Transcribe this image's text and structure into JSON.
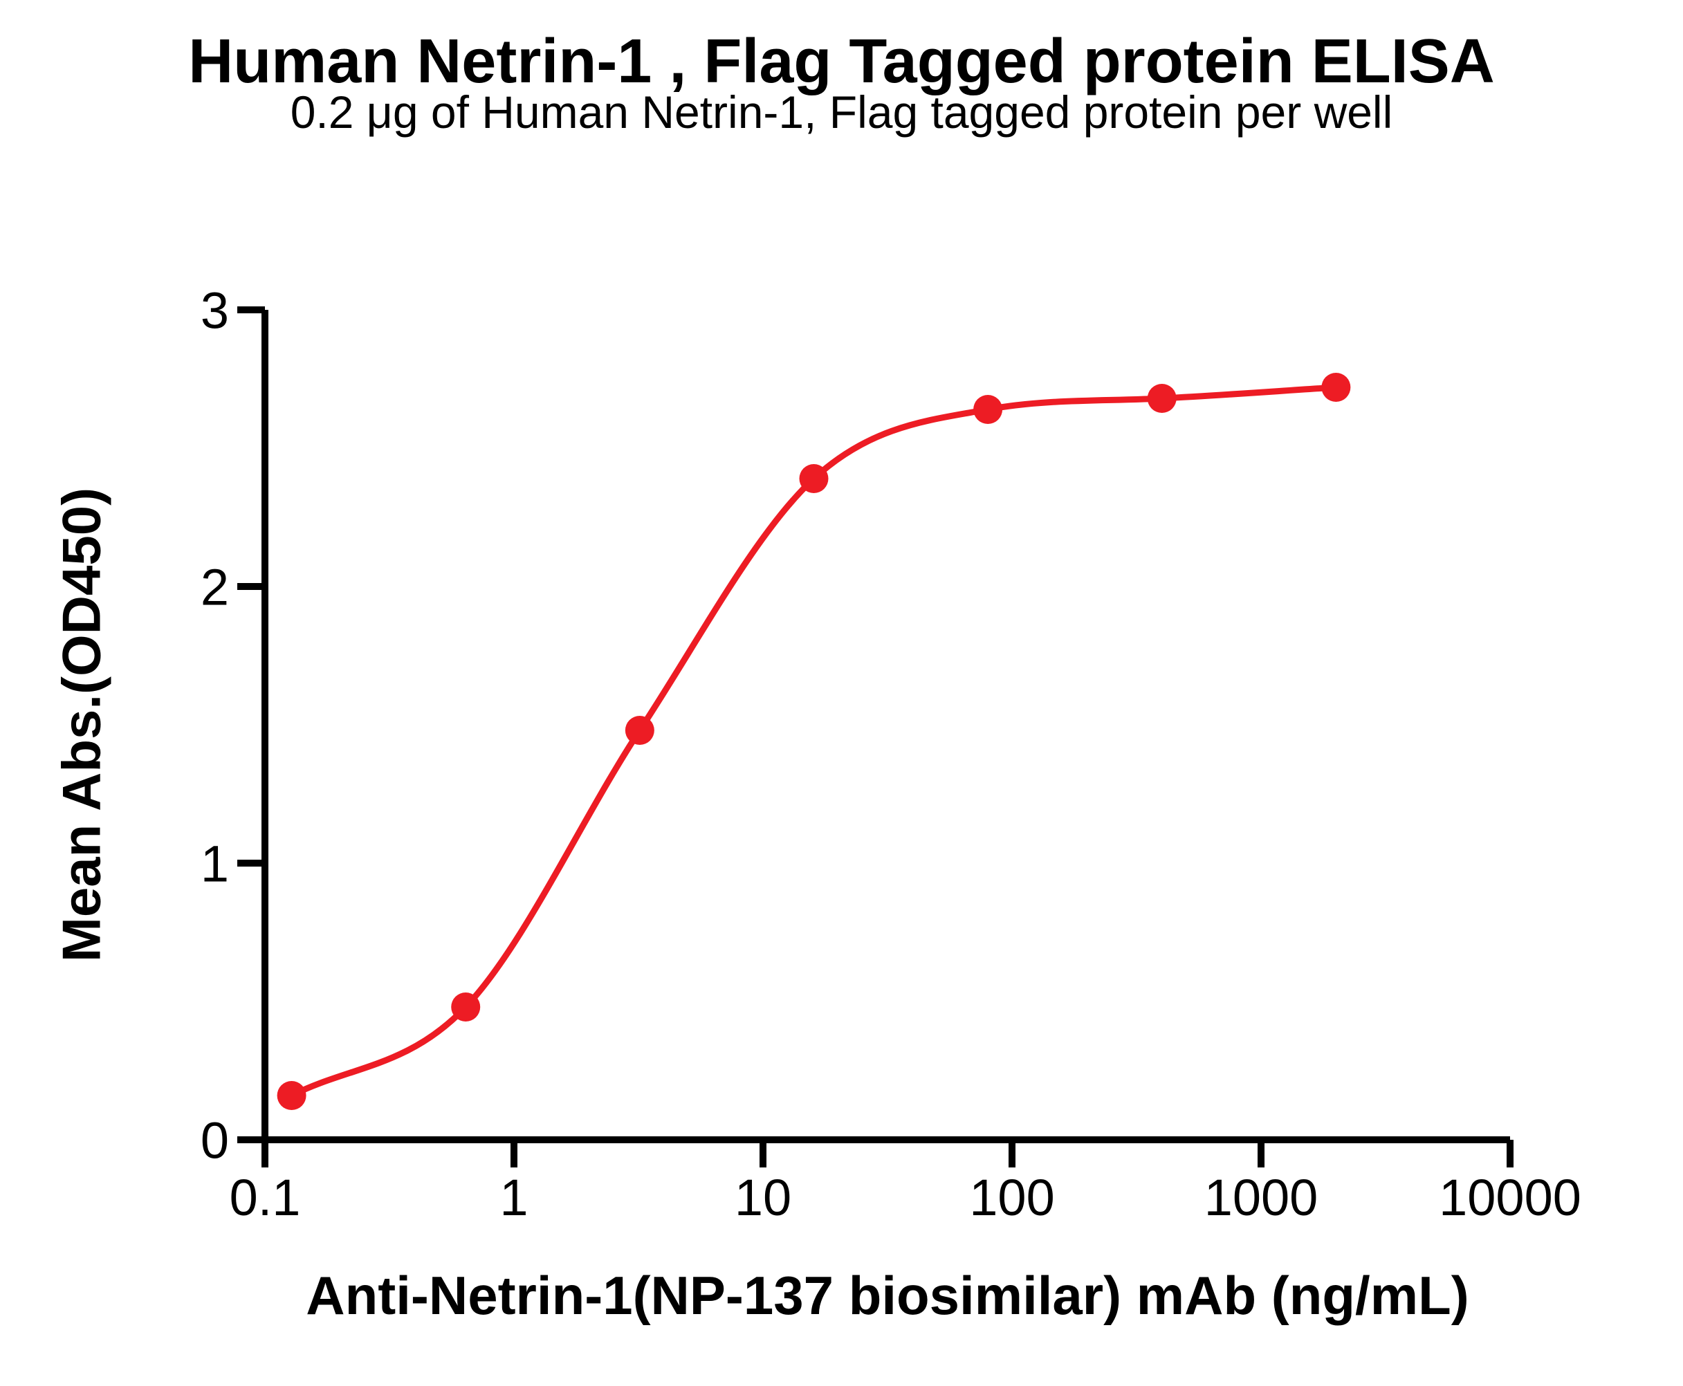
{
  "chart_data": {
    "type": "line",
    "title": "Human Netrin-1 , Flag Tagged protein ELISA",
    "subtitle": "0.2 μg of Human Netrin-1, Flag tagged protein per well",
    "xlabel": "Anti-Netrin-1(NP-137 biosimilar) mAb (ng/mL)",
    "ylabel": "Mean Abs.(OD450)",
    "x_scale": "log10",
    "xlim": [
      0.1,
      10000
    ],
    "ylim": [
      0,
      3
    ],
    "x_ticks": [
      {
        "value": 0.1,
        "label": "0.1"
      },
      {
        "value": 1,
        "label": "1"
      },
      {
        "value": 10,
        "label": "10"
      },
      {
        "value": 100,
        "label": "100"
      },
      {
        "value": 1000,
        "label": "1000"
      },
      {
        "value": 10000,
        "label": "10000"
      }
    ],
    "y_ticks": [
      {
        "value": 0,
        "label": "0"
      },
      {
        "value": 1,
        "label": "1"
      },
      {
        "value": 2,
        "label": "2"
      },
      {
        "value": 3,
        "label": "3"
      }
    ],
    "grid": false,
    "legend": null,
    "series": [
      {
        "marker": "circle",
        "line": "smooth",
        "color": "#ED1C24",
        "points": [
          {
            "x": 0.128,
            "y": 0.16
          },
          {
            "x": 0.64,
            "y": 0.48
          },
          {
            "x": 3.2,
            "y": 1.48
          },
          {
            "x": 16,
            "y": 2.39
          },
          {
            "x": 80,
            "y": 2.64
          },
          {
            "x": 400,
            "y": 2.68
          },
          {
            "x": 2000,
            "y": 2.72
          }
        ]
      }
    ],
    "colors": {
      "curve": "#ED1C24",
      "axis": "#000000",
      "text": "#000000",
      "background": "#FFFFFF"
    }
  }
}
